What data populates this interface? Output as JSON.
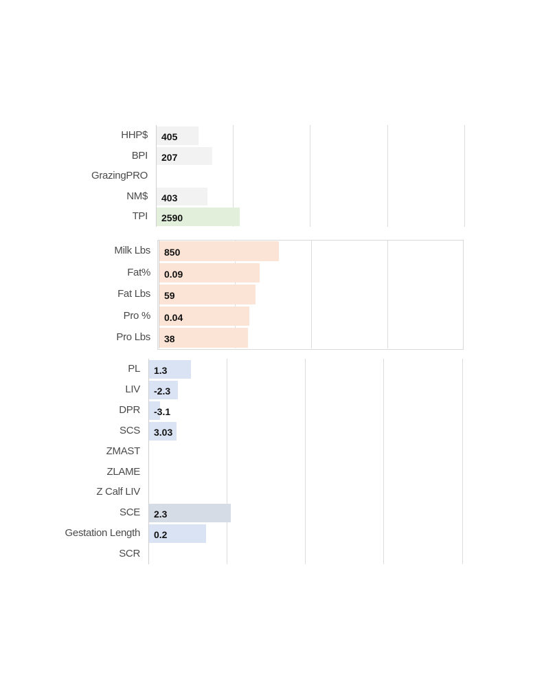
{
  "chart_data": [
    {
      "type": "bar",
      "orientation": "horizontal",
      "title": "",
      "categories": [
        "HHP$",
        "BPI",
        "GrazingPRO",
        "NM$",
        "TPI"
      ],
      "values": [
        405,
        207,
        null,
        403,
        2590
      ],
      "value_labels": [
        "405",
        "207",
        "",
        "403",
        "2590"
      ],
      "bar_widths": [
        0.135,
        0.18,
        0,
        0.165,
        0.27
      ],
      "colors": [
        "#f2f2f2",
        "#f2f2f2",
        "#f2f2f2",
        "#f2f2f2",
        "#e2efda"
      ],
      "grid": true,
      "legend": "none"
    },
    {
      "type": "bar",
      "orientation": "horizontal",
      "title": "",
      "categories": [
        "Milk Lbs",
        "Fat%",
        "Fat Lbs",
        "Pro %",
        "Pro Lbs"
      ],
      "values": [
        850,
        0.09,
        59,
        0.04,
        38
      ],
      "value_labels": [
        "850",
        "0.09",
        "59",
        "0.04",
        "38"
      ],
      "bar_widths": [
        0.393,
        0.33,
        0.316,
        0.296,
        0.292
      ],
      "colors": [
        "#fbe4d5",
        "#fbe4d5",
        "#fbe4d5",
        "#fbe4d5",
        "#fbe4d5"
      ],
      "grid": true,
      "legend": "none"
    },
    {
      "type": "bar",
      "orientation": "horizontal",
      "title": "",
      "categories": [
        "PL",
        "LIV",
        "DPR",
        "SCS",
        "ZMAST",
        "ZLAME",
        "Z Calf LIV",
        "SCE",
        "Gestation Length",
        "SCR"
      ],
      "values": [
        1.3,
        -2.3,
        -3.1,
        3.03,
        null,
        null,
        null,
        2.3,
        0.2,
        null
      ],
      "value_labels": [
        "1.3",
        "-2.3",
        "-3.1",
        "3.03",
        "",
        "",
        "",
        "2.3",
        "0.2",
        ""
      ],
      "bar_widths": [
        0.133,
        0.092,
        0.035,
        0.087,
        0,
        0,
        0,
        0.26,
        0.182,
        0
      ],
      "colors": [
        "#dae3f3",
        "#dae3f3",
        "#dae3f3",
        "#dae3f3",
        "#dae3f3",
        "#dae3f3",
        "#dae3f3",
        "#d6dce5",
        "#dae3f3",
        "#dae3f3"
      ],
      "grid": true,
      "legend": "none"
    }
  ]
}
